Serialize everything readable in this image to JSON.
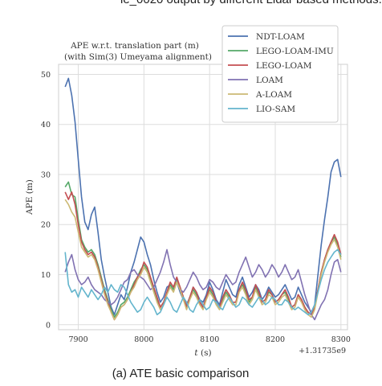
{
  "page_top_text": "ie_0020 output by different Lidar based methods.",
  "caption": "(a) ATE basic comparison",
  "chart_data": {
    "type": "line",
    "title": "APE w.r.t. translation part (m)",
    "subtitle": "(with Sim(3) Umeyama alignment)",
    "xlabel": "t (s)",
    "ylabel": "APE (m)",
    "x_offset_label": "+1.31735e9",
    "xlim": [
      7870,
      8310
    ],
    "ylim": [
      -1,
      52
    ],
    "xticks": [
      7900,
      8000,
      8100,
      8200,
      8300
    ],
    "yticks": [
      0,
      10,
      20,
      30,
      40,
      50
    ],
    "grid": true,
    "legend_position": "top-right",
    "series": [
      {
        "name": "NDT-LOAM",
        "color": "#4c72b0",
        "x": [
          7880,
          7885,
          7890,
          7895,
          7900,
          7905,
          7910,
          7915,
          7920,
          7925,
          7930,
          7935,
          7940,
          7945,
          7950,
          7955,
          7960,
          7965,
          7970,
          7975,
          7980,
          7985,
          7990,
          7995,
          8000,
          8005,
          8010,
          8015,
          8020,
          8025,
          8030,
          8035,
          8040,
          8045,
          8050,
          8055,
          8060,
          8065,
          8070,
          8075,
          8080,
          8085,
          8090,
          8095,
          8100,
          8105,
          8110,
          8115,
          8120,
          8125,
          8130,
          8135,
          8140,
          8145,
          8150,
          8155,
          8160,
          8165,
          8170,
          8175,
          8180,
          8185,
          8190,
          8195,
          8200,
          8205,
          8210,
          8215,
          8220,
          8225,
          8230,
          8235,
          8240,
          8245,
          8250,
          8255,
          8260,
          8265,
          8270,
          8275,
          8280,
          8285,
          8290,
          8295,
          8300
        ],
        "values": [
          47.5,
          49.2,
          45.8,
          40.5,
          33.0,
          25.5,
          20.5,
          19.0,
          22.0,
          23.5,
          18.5,
          13.0,
          9.5,
          6.5,
          3.5,
          2.0,
          4.0,
          6.0,
          5.0,
          7.5,
          10.5,
          12.5,
          15.0,
          17.5,
          16.5,
          14.0,
          12.0,
          9.0,
          6.5,
          4.5,
          5.5,
          7.5,
          8.0,
          7.0,
          8.5,
          6.5,
          5.0,
          4.0,
          5.5,
          7.5,
          6.5,
          5.0,
          4.5,
          6.0,
          8.5,
          7.0,
          5.0,
          4.0,
          6.5,
          9.0,
          7.5,
          6.0,
          5.5,
          8.0,
          9.5,
          7.5,
          5.5,
          6.5,
          8.0,
          7.0,
          5.0,
          6.0,
          7.5,
          6.5,
          5.5,
          6.0,
          7.0,
          8.0,
          6.5,
          5.0,
          5.5,
          7.5,
          6.0,
          4.5,
          3.5,
          2.5,
          4.0,
          10.0,
          16.0,
          21.0,
          25.5,
          30.5,
          32.5,
          33.0,
          29.5
        ]
      },
      {
        "name": "LEGO-LOAM-IMU",
        "color": "#55a868",
        "x": [
          7880,
          7885,
          7890,
          7895,
          7900,
          7905,
          7910,
          7915,
          7920,
          7925,
          7930,
          7935,
          7940,
          7945,
          7950,
          7955,
          7960,
          7965,
          7970,
          7975,
          7980,
          7985,
          7990,
          7995,
          8000,
          8005,
          8010,
          8015,
          8020,
          8025,
          8030,
          8035,
          8040,
          8045,
          8050,
          8055,
          8060,
          8065,
          8070,
          8075,
          8080,
          8085,
          8090,
          8095,
          8100,
          8105,
          8110,
          8115,
          8120,
          8125,
          8130,
          8135,
          8140,
          8145,
          8150,
          8155,
          8160,
          8165,
          8170,
          8175,
          8180,
          8185,
          8190,
          8195,
          8200,
          8205,
          8210,
          8215,
          8220,
          8225,
          8230,
          8235,
          8240,
          8245,
          8250,
          8255,
          8260,
          8265,
          8270,
          8275,
          8280,
          8285,
          8290,
          8295,
          8300
        ],
        "values": [
          27.5,
          28.5,
          26.0,
          25.5,
          21.0,
          17.0,
          15.5,
          14.5,
          15.0,
          14.0,
          12.0,
          9.5,
          7.0,
          5.0,
          3.0,
          1.5,
          2.5,
          4.0,
          4.5,
          5.5,
          7.0,
          8.5,
          9.5,
          11.0,
          12.0,
          11.0,
          9.0,
          7.0,
          5.0,
          3.5,
          4.5,
          6.5,
          8.0,
          7.0,
          9.0,
          7.5,
          5.5,
          3.5,
          5.5,
          7.0,
          6.0,
          4.5,
          3.5,
          5.5,
          7.0,
          6.0,
          4.5,
          3.5,
          5.0,
          6.5,
          5.5,
          4.5,
          4.5,
          7.0,
          8.0,
          6.5,
          4.5,
          5.5,
          7.5,
          6.0,
          4.5,
          5.0,
          6.5,
          6.0,
          4.5,
          5.0,
          6.0,
          6.5,
          5.0,
          3.5,
          4.0,
          6.0,
          5.0,
          3.5,
          2.5,
          2.0,
          3.5,
          7.0,
          10.5,
          13.0,
          15.0,
          16.5,
          17.5,
          16.0,
          13.5
        ]
      },
      {
        "name": "LEGO-LOAM",
        "color": "#c44e52",
        "x": [
          7880,
          7885,
          7890,
          7895,
          7900,
          7905,
          7910,
          7915,
          7920,
          7925,
          7930,
          7935,
          7940,
          7945,
          7950,
          7955,
          7960,
          7965,
          7970,
          7975,
          7980,
          7985,
          7990,
          7995,
          8000,
          8005,
          8010,
          8015,
          8020,
          8025,
          8030,
          8035,
          8040,
          8045,
          8050,
          8055,
          8060,
          8065,
          8070,
          8075,
          8080,
          8085,
          8090,
          8095,
          8100,
          8105,
          8110,
          8115,
          8120,
          8125,
          8130,
          8135,
          8140,
          8145,
          8150,
          8155,
          8160,
          8165,
          8170,
          8175,
          8180,
          8185,
          8190,
          8195,
          8200,
          8205,
          8210,
          8215,
          8220,
          8225,
          8230,
          8235,
          8240,
          8245,
          8250,
          8255,
          8260,
          8265,
          8270,
          8275,
          8280,
          8285,
          8290,
          8295,
          8300
        ],
        "values": [
          26.5,
          25.0,
          26.5,
          24.0,
          20.0,
          16.5,
          15.0,
          14.0,
          14.5,
          13.5,
          11.5,
          9.0,
          6.5,
          4.5,
          2.5,
          1.0,
          2.0,
          3.5,
          4.0,
          5.0,
          6.5,
          8.0,
          9.5,
          10.5,
          12.5,
          11.5,
          9.5,
          7.5,
          5.5,
          3.5,
          4.5,
          6.5,
          8.5,
          7.5,
          9.5,
          7.5,
          5.5,
          3.5,
          5.5,
          7.5,
          6.5,
          4.5,
          3.5,
          5.5,
          7.5,
          6.5,
          4.5,
          3.5,
          5.5,
          7.0,
          6.0,
          4.5,
          4.5,
          7.0,
          8.5,
          7.0,
          5.0,
          5.5,
          8.0,
          6.5,
          4.5,
          5.0,
          7.0,
          6.0,
          4.5,
          5.0,
          6.0,
          7.0,
          5.5,
          3.5,
          4.0,
          6.0,
          5.0,
          3.5,
          2.5,
          2.0,
          3.5,
          7.0,
          10.5,
          13.0,
          15.0,
          16.5,
          18.0,
          16.5,
          14.0
        ]
      },
      {
        "name": "LOAM",
        "color": "#8172b2",
        "x": [
          7880,
          7885,
          7890,
          7895,
          7900,
          7905,
          7910,
          7915,
          7920,
          7925,
          7930,
          7935,
          7940,
          7945,
          7950,
          7955,
          7960,
          7965,
          7970,
          7975,
          7980,
          7985,
          7990,
          7995,
          8000,
          8005,
          8010,
          8015,
          8020,
          8025,
          8030,
          8035,
          8040,
          8045,
          8050,
          8055,
          8060,
          8065,
          8070,
          8075,
          8080,
          8085,
          8090,
          8095,
          8100,
          8105,
          8110,
          8115,
          8120,
          8125,
          8130,
          8135,
          8140,
          8145,
          8150,
          8155,
          8160,
          8165,
          8170,
          8175,
          8180,
          8185,
          8190,
          8195,
          8200,
          8205,
          8210,
          8215,
          8220,
          8225,
          8230,
          8235,
          8240,
          8245,
          8250,
          8255,
          8260,
          8265,
          8270,
          8275,
          8280,
          8285,
          8290,
          8295,
          8300
        ],
        "values": [
          10.5,
          12.5,
          14.0,
          11.0,
          9.0,
          8.0,
          8.5,
          9.5,
          8.0,
          7.0,
          6.5,
          6.0,
          5.0,
          4.5,
          4.0,
          4.5,
          5.5,
          7.0,
          8.5,
          9.0,
          10.5,
          11.0,
          10.0,
          9.5,
          9.0,
          8.0,
          7.0,
          7.5,
          9.0,
          10.5,
          12.5,
          15.0,
          12.0,
          9.5,
          8.5,
          7.0,
          6.5,
          7.5,
          9.0,
          10.5,
          9.5,
          8.0,
          7.0,
          7.5,
          9.0,
          8.5,
          7.5,
          7.0,
          8.5,
          10.0,
          9.0,
          8.0,
          8.5,
          10.5,
          12.0,
          13.5,
          11.5,
          9.5,
          10.5,
          12.0,
          11.0,
          9.5,
          10.5,
          12.0,
          11.0,
          9.5,
          10.5,
          12.0,
          10.5,
          9.0,
          9.5,
          11.0,
          8.5,
          6.0,
          4.0,
          2.0,
          1.0,
          2.5,
          4.0,
          5.0,
          7.0,
          10.0,
          12.5,
          13.0,
          10.5
        ]
      },
      {
        "name": "A-LOAM",
        "color": "#ccb974",
        "x": [
          7880,
          7885,
          7890,
          7895,
          7900,
          7905,
          7910,
          7915,
          7920,
          7925,
          7930,
          7935,
          7940,
          7945,
          7950,
          7955,
          7960,
          7965,
          7970,
          7975,
          7980,
          7985,
          7990,
          7995,
          8000,
          8005,
          8010,
          8015,
          8020,
          8025,
          8030,
          8035,
          8040,
          8045,
          8050,
          8055,
          8060,
          8065,
          8070,
          8075,
          8080,
          8085,
          8090,
          8095,
          8100,
          8105,
          8110,
          8115,
          8120,
          8125,
          8130,
          8135,
          8140,
          8145,
          8150,
          8155,
          8160,
          8165,
          8170,
          8175,
          8180,
          8185,
          8190,
          8195,
          8200,
          8205,
          8210,
          8215,
          8220,
          8225,
          8230,
          8235,
          8240,
          8245,
          8250,
          8255,
          8260,
          8265,
          8270,
          8275,
          8280,
          8285,
          8290,
          8295,
          8300
        ],
        "values": [
          25.0,
          24.0,
          22.5,
          21.5,
          18.5,
          15.5,
          14.5,
          13.5,
          14.0,
          13.0,
          11.0,
          8.5,
          6.0,
          4.0,
          2.5,
          1.0,
          2.0,
          3.5,
          4.0,
          5.0,
          6.5,
          7.5,
          9.0,
          10.0,
          11.5,
          10.5,
          8.5,
          6.5,
          4.5,
          3.0,
          4.0,
          6.0,
          7.5,
          6.5,
          8.5,
          7.0,
          5.0,
          3.0,
          5.0,
          6.5,
          5.5,
          4.0,
          3.0,
          5.0,
          6.5,
          5.5,
          4.0,
          3.0,
          4.5,
          6.0,
          5.0,
          4.0,
          4.0,
          6.5,
          7.5,
          6.0,
          4.0,
          5.0,
          7.0,
          5.5,
          4.0,
          4.5,
          6.0,
          5.5,
          4.0,
          4.5,
          5.5,
          6.0,
          4.5,
          3.0,
          3.5,
          5.5,
          4.5,
          3.0,
          2.0,
          1.5,
          3.0,
          6.5,
          10.0,
          12.5,
          14.5,
          16.0,
          17.0,
          15.5,
          13.0
        ]
      },
      {
        "name": "LIO-SAM",
        "color": "#64b5cd",
        "x": [
          7880,
          7885,
          7890,
          7895,
          7900,
          7905,
          7910,
          7915,
          7920,
          7925,
          7930,
          7935,
          7940,
          7945,
          7950,
          7955,
          7960,
          7965,
          7970,
          7975,
          7980,
          7985,
          7990,
          7995,
          8000,
          8005,
          8010,
          8015,
          8020,
          8025,
          8030,
          8035,
          8040,
          8045,
          8050,
          8055,
          8060,
          8065,
          8070,
          8075,
          8080,
          8085,
          8090,
          8095,
          8100,
          8105,
          8110,
          8115,
          8120,
          8125,
          8130,
          8135,
          8140,
          8145,
          8150,
          8155,
          8160,
          8165,
          8170,
          8175,
          8180,
          8185,
          8190,
          8195,
          8200,
          8205,
          8210,
          8215,
          8220,
          8225,
          8230,
          8235,
          8240,
          8245,
          8250,
          8255,
          8260,
          8265,
          8270,
          8275,
          8280,
          8285,
          8290,
          8295,
          8300
        ],
        "values": [
          14.5,
          8.0,
          6.5,
          7.0,
          5.5,
          7.5,
          6.5,
          5.5,
          7.0,
          6.0,
          5.0,
          6.0,
          7.5,
          6.5,
          8.0,
          7.0,
          6.5,
          8.0,
          7.5,
          6.0,
          4.5,
          3.5,
          2.5,
          3.0,
          4.5,
          5.5,
          4.5,
          3.5,
          2.0,
          2.5,
          4.0,
          5.5,
          4.5,
          3.0,
          2.5,
          4.0,
          5.5,
          4.5,
          3.0,
          2.5,
          4.0,
          5.0,
          4.0,
          3.0,
          3.5,
          5.0,
          4.5,
          3.5,
          3.0,
          4.5,
          5.5,
          4.5,
          3.5,
          4.0,
          5.5,
          5.0,
          4.0,
          3.5,
          4.5,
          5.5,
          5.0,
          4.0,
          4.5,
          5.5,
          5.0,
          4.0,
          4.0,
          5.0,
          4.5,
          3.5,
          3.0,
          3.5,
          3.0,
          2.5,
          2.0,
          2.5,
          4.0,
          6.5,
          9.0,
          11.0,
          12.5,
          13.5,
          14.5,
          15.0,
          14.0
        ]
      }
    ]
  }
}
